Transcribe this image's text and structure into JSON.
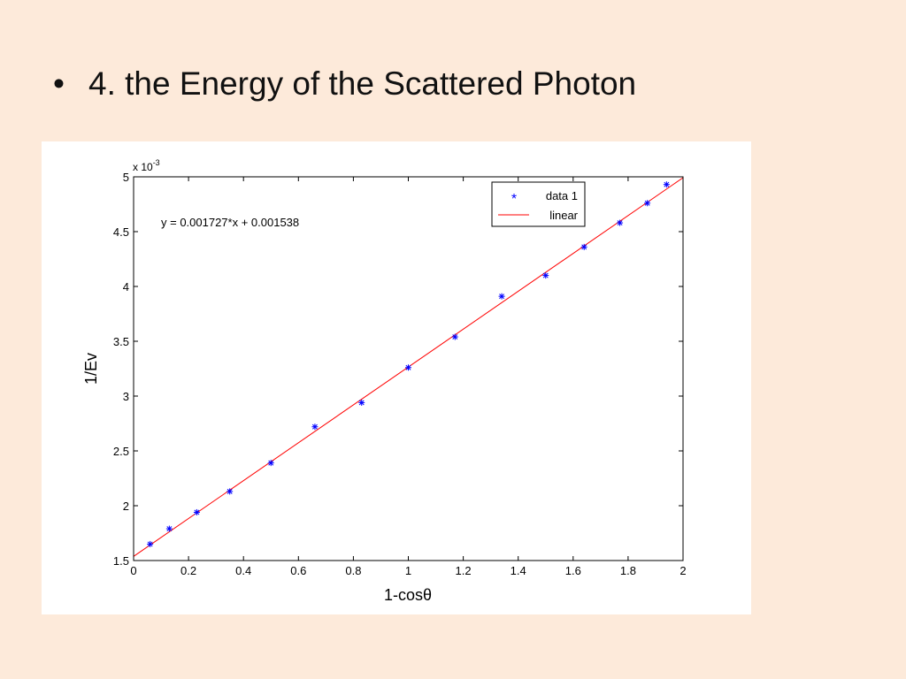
{
  "slide": {
    "bullet": "•",
    "title": "4. the Energy of the Scattered Photon"
  },
  "chart_data": {
    "type": "scatter",
    "xlabel": "1-cosθ",
    "ylabel": "1/Ev",
    "y_exponent_label": "x 10",
    "y_exponent_power": "-3",
    "xlim": [
      0,
      2
    ],
    "ylim": [
      1.5,
      5
    ],
    "x_ticks": [
      0,
      0.2,
      0.4,
      0.6,
      0.8,
      1,
      1.2,
      1.4,
      1.6,
      1.8,
      2
    ],
    "x_tick_labels": [
      "0",
      "0.2",
      "0.4",
      "0.6",
      "0.8",
      "1",
      "1.2",
      "1.4",
      "1.6",
      "1.8",
      "2"
    ],
    "y_ticks": [
      1.5,
      2,
      2.5,
      3,
      3.5,
      4,
      4.5,
      5
    ],
    "y_tick_labels": [
      "1.5",
      "2",
      "2.5",
      "3",
      "3.5",
      "4",
      "4.5",
      "5"
    ],
    "grid": false,
    "legend_position": "top-right",
    "legend": [
      {
        "label": "data 1",
        "marker": "*",
        "color": "#0000ff"
      },
      {
        "label": "linear",
        "marker": "line",
        "color": "#ff0000"
      }
    ],
    "fit_equation": "y = 0.001727*x + 0.001538",
    "fit": {
      "slope": 1.727,
      "intercept": 1.538
    },
    "series": [
      {
        "name": "data 1",
        "color": "#0000ff",
        "marker": "*",
        "x": [
          0.06,
          0.13,
          0.23,
          0.35,
          0.5,
          0.66,
          0.83,
          1.0,
          1.17,
          1.34,
          1.5,
          1.64,
          1.77,
          1.87,
          1.94
        ],
        "y": [
          1.65,
          1.79,
          1.94,
          2.13,
          2.39,
          2.72,
          2.94,
          3.26,
          3.54,
          3.91,
          4.1,
          4.36,
          4.58,
          4.76,
          4.93
        ]
      }
    ]
  }
}
